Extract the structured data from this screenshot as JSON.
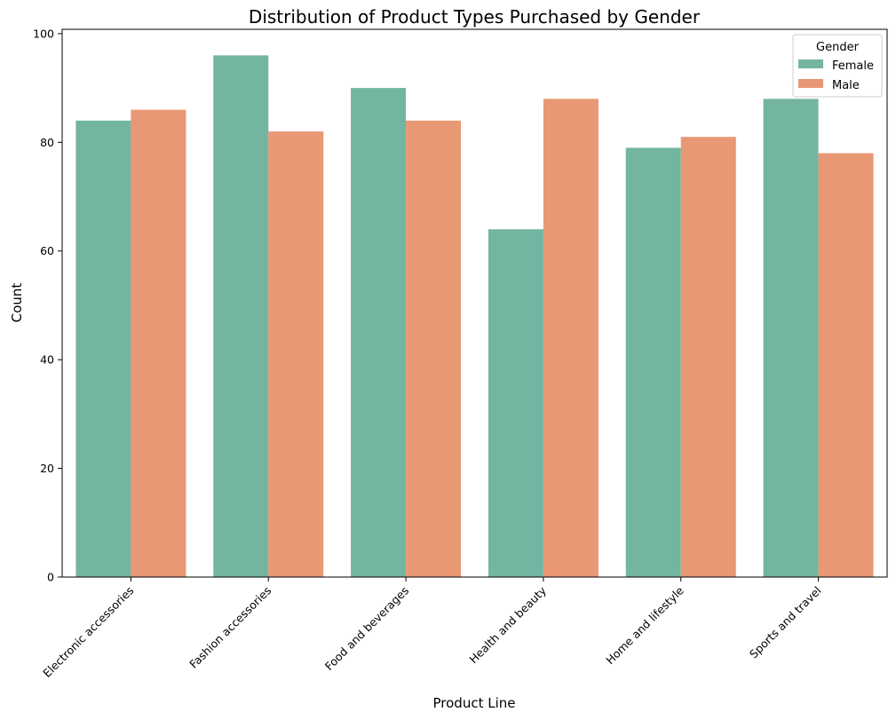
{
  "chart_data": {
    "type": "bar",
    "title": "Distribution of Product Types Purchased by Gender",
    "xlabel": "Product Line",
    "ylabel": "Count",
    "categories": [
      "Electronic accessories",
      "Fashion accessories",
      "Food and beverages",
      "Health and beauty",
      "Home and lifestyle",
      "Sports and travel"
    ],
    "series": [
      {
        "name": "Female",
        "color": "#73b5a1",
        "values": [
          84,
          96,
          90,
          64,
          79,
          88
        ]
      },
      {
        "name": "Male",
        "color": "#e89874",
        "values": [
          86,
          82,
          84,
          88,
          81,
          78
        ]
      }
    ],
    "ylim": [
      0,
      100.8
    ],
    "yticks": [
      0,
      20,
      40,
      60,
      80,
      100
    ],
    "grid": false,
    "legend": {
      "title": "Gender",
      "placement": "top-right"
    }
  }
}
